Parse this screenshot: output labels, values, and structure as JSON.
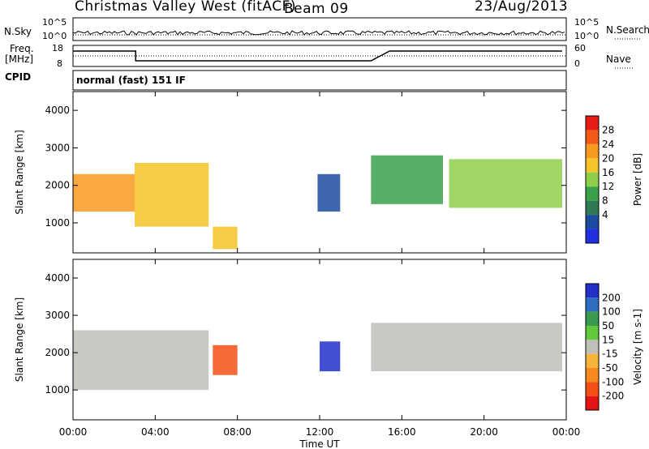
{
  "header": {
    "station": "Christmas Valley West (fitACF)",
    "beam": "Beam 09",
    "date": "23/Aug/2013"
  },
  "side_labels": {
    "nsky": "N.Sky",
    "nsearch": "N.Search",
    "freq_line1": "Freq.",
    "freq_line2": "[MHz]",
    "nave": "Nave",
    "cpid": "CPID",
    "cpid_value": "normal (fast) 151 IF"
  },
  "small_axes": {
    "noise_top": "10^5",
    "noise_bottom": "10^0",
    "freq_top": "18",
    "freq_bottom": "8",
    "nave_top": "60",
    "nave_bottom": "0"
  },
  "chart_data": [
    {
      "type": "heatmap",
      "panel": "power",
      "ylabel": "Slant Range [km]",
      "yticks": [
        "1000",
        "2000",
        "3000",
        "4000"
      ],
      "ylim": [
        200,
        4500
      ],
      "colorbar_label": "Power [dB]",
      "colorbar_ticks": [
        "4",
        "8",
        "12",
        "16",
        "20",
        "24",
        "28"
      ],
      "colorbar_colors": [
        "#2030e0",
        "#1c4aa0",
        "#2e7a55",
        "#3aa04a",
        "#8ecf4a",
        "#f6c428",
        "#f89a20",
        "#f35a17",
        "#e81c14"
      ],
      "regions": [
        {
          "t0": 0.0,
          "t1": 3.0,
          "r0": 1300,
          "r1": 2300,
          "level": 24
        },
        {
          "t0": 3.0,
          "t1": 6.6,
          "r0": 900,
          "r1": 2600,
          "level": 22
        },
        {
          "t0": 6.8,
          "t1": 8.0,
          "r0": 300,
          "r1": 900,
          "level": 20
        },
        {
          "t0": 11.9,
          "t1": 13.0,
          "r0": 1300,
          "r1": 2300,
          "level": 6
        },
        {
          "t0": 14.5,
          "t1": 18.0,
          "r0": 1500,
          "r1": 2800,
          "level": 12
        },
        {
          "t0": 18.3,
          "t1": 23.8,
          "r0": 1400,
          "r1": 2700,
          "level": 18
        }
      ]
    },
    {
      "type": "heatmap",
      "panel": "velocity",
      "ylabel": "Slant Range [km]",
      "yticks": [
        "1000",
        "2000",
        "3000",
        "4000"
      ],
      "ylim": [
        200,
        4500
      ],
      "colorbar_label": "Velocity [m s-1]",
      "colorbar_ticks": [
        "200",
        "100",
        "50",
        "15",
        "-15",
        "-50",
        "-100",
        "-200"
      ],
      "colorbar_colors": [
        "#2030c8",
        "#2e6ec0",
        "#3a9a4e",
        "#62c83c",
        "#c0c0b8",
        "#f6b43a",
        "#f68a1e",
        "#f45016",
        "#e41414"
      ],
      "regions": [
        {
          "t0": 0.0,
          "t1": 6.6,
          "r0": 1000,
          "r1": 2600,
          "level": 0
        },
        {
          "t0": 6.8,
          "t1": 8.0,
          "r0": 1400,
          "r1": 2200,
          "level": -200
        },
        {
          "t0": 12.0,
          "t1": 13.0,
          "r0": 1500,
          "r1": 2300,
          "level": 200
        },
        {
          "t0": 14.5,
          "t1": 23.8,
          "r0": 1500,
          "r1": 2800,
          "level": 0
        }
      ],
      "xlabel": "Time UT",
      "xticks": [
        "00:00",
        "04:00",
        "08:00",
        "12:00",
        "16:00",
        "20:00",
        "00:00"
      ],
      "xlim": [
        0,
        24
      ]
    }
  ]
}
